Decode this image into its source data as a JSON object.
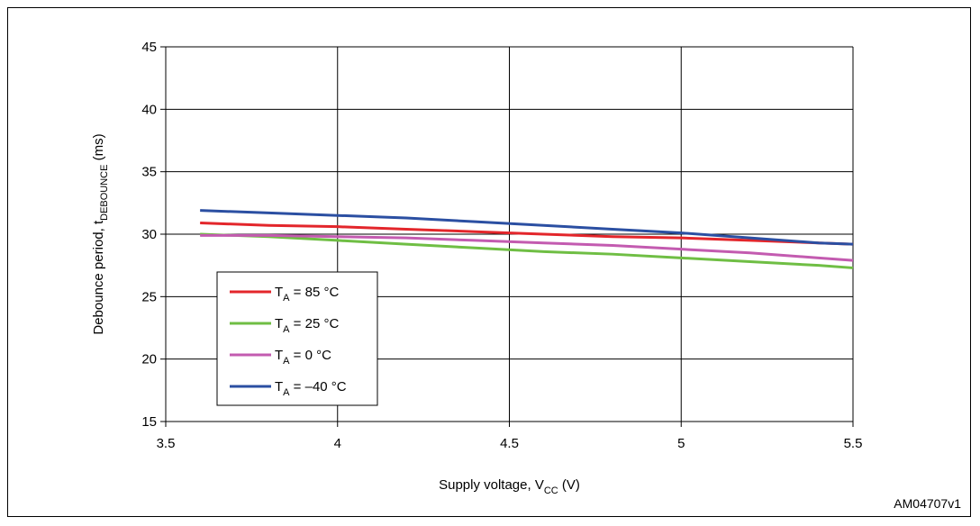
{
  "figure_id": "AM04707v1",
  "chart_data": {
    "type": "line",
    "xlabel": {
      "main": "Supply voltage, V",
      "sub": "CC",
      "unit": " (V)"
    },
    "ylabel": {
      "main": "Debounce period, t",
      "sub": "DEBOUNCE",
      "unit": " (ms)"
    },
    "xlim": [
      3.5,
      5.5
    ],
    "ylim": [
      15,
      45
    ],
    "xticks": [
      3.5,
      4,
      4.5,
      5,
      5.5
    ],
    "yticks": [
      15,
      20,
      25,
      30,
      35,
      40,
      45
    ],
    "xtick_labels": [
      "3.5",
      "4",
      "4.5",
      "5",
      "5.5"
    ],
    "ytick_labels": [
      "15",
      "20",
      "25",
      "30",
      "35",
      "40",
      "45"
    ],
    "grid": true,
    "legend_position": "lower-left",
    "series": [
      {
        "name": "T",
        "name_sub": "A",
        "name_rest": " = 85 °C",
        "color": "#e3262b",
        "x": [
          3.6,
          3.8,
          4.0,
          4.2,
          4.4,
          4.6,
          4.8,
          5.0,
          5.2,
          5.4,
          5.5
        ],
        "y": [
          30.9,
          30.7,
          30.6,
          30.4,
          30.2,
          30.0,
          29.8,
          29.7,
          29.5,
          29.3,
          29.2
        ]
      },
      {
        "name": "T",
        "name_sub": "A",
        "name_rest": " = 25 °C",
        "color": "#6fbe44",
        "x": [
          3.6,
          3.8,
          4.0,
          4.2,
          4.4,
          4.6,
          4.8,
          5.0,
          5.2,
          5.4,
          5.5
        ],
        "y": [
          30.0,
          29.8,
          29.5,
          29.2,
          28.9,
          28.6,
          28.4,
          28.1,
          27.8,
          27.5,
          27.3
        ]
      },
      {
        "name": "T",
        "name_sub": "A",
        "name_rest": " = 0 °C",
        "color": "#c35bb0",
        "x": [
          3.6,
          3.8,
          4.0,
          4.2,
          4.4,
          4.6,
          4.8,
          5.0,
          5.2,
          5.4,
          5.5
        ],
        "y": [
          29.9,
          29.9,
          29.8,
          29.7,
          29.5,
          29.3,
          29.1,
          28.8,
          28.5,
          28.1,
          27.9
        ]
      },
      {
        "name": "T",
        "name_sub": "A",
        "name_rest": " = –40 °C",
        "color": "#2b4fa2",
        "x": [
          3.6,
          3.8,
          4.0,
          4.2,
          4.4,
          4.6,
          4.8,
          5.0,
          5.2,
          5.4,
          5.5
        ],
        "y": [
          31.9,
          31.7,
          31.5,
          31.3,
          31.0,
          30.7,
          30.4,
          30.1,
          29.7,
          29.3,
          29.2
        ]
      }
    ]
  }
}
